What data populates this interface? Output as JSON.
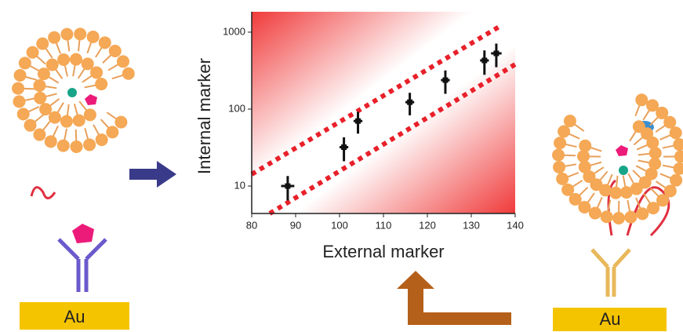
{
  "chart_data": {
    "type": "scatter",
    "x_label": "External marker",
    "y_label": "Internal marker",
    "x": [
      88.2,
      101,
      104.2,
      116,
      124.1,
      133,
      135.7
    ],
    "xerr": [
      1.5,
      1,
      1,
      1,
      1,
      1,
      1.2
    ],
    "values": [
      10,
      32,
      70,
      123,
      238,
      429,
      530
    ],
    "errors": [
      3.5,
      11,
      22,
      40,
      80,
      150,
      180
    ],
    "color": "#111111",
    "xlim": [
      80,
      140
    ],
    "ylim": [
      4.4,
      1840
    ],
    "log_y": true,
    "xticks": [
      80,
      90,
      100,
      110,
      120,
      130,
      140
    ],
    "yticks": [
      10,
      100,
      1000
    ],
    "annotations": [
      "Au",
      "Au"
    ]
  }
}
